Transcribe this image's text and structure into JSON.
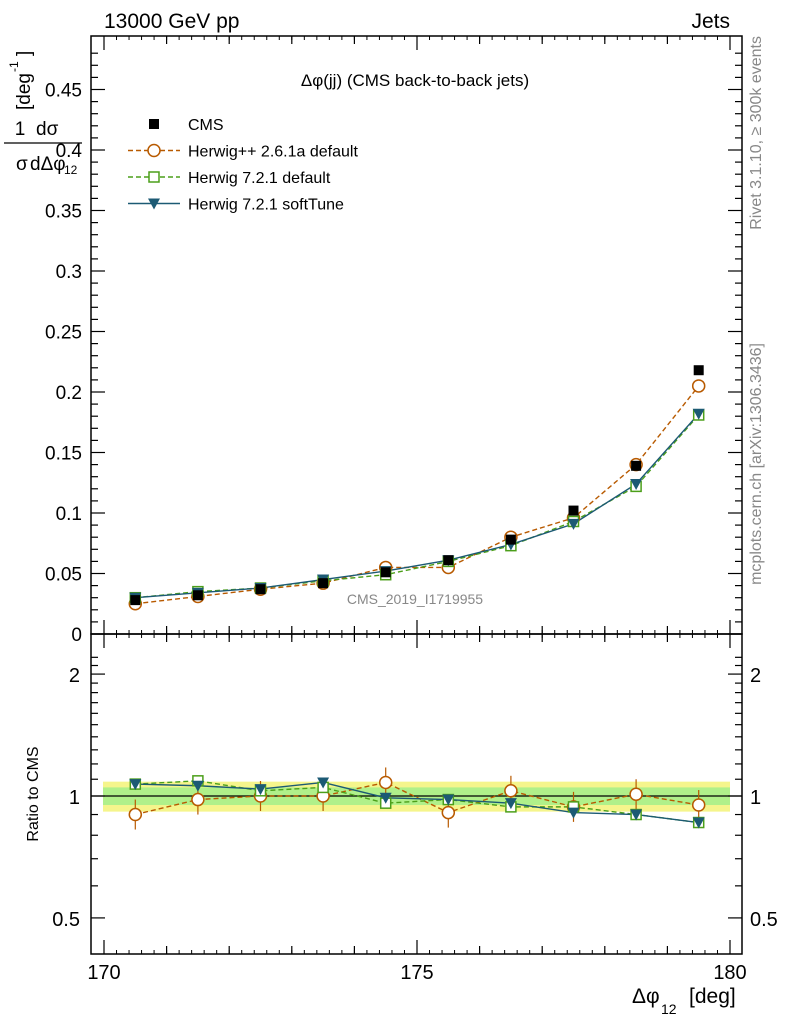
{
  "header": {
    "left": "13000 GeV pp",
    "right": "Jets"
  },
  "side_text": {
    "top": "Rivet 3.1.10, ≥ 300k events",
    "bottom": "mcplots.cern.ch [arXiv:1306.3436]"
  },
  "chart_data": {
    "type": "scatter",
    "title": "Δφ(jj) (CMS back-to-back jets)",
    "watermark": "CMS_2019_I1719955",
    "xlabel": "Δφ₁₂ [deg]",
    "ylabel_top": "1/σ dσ/dΔφ₁₂ [deg⁻¹]",
    "ylabel_bottom": "Ratio to CMS",
    "xlim": [
      170,
      180
    ],
    "ylim_top": [
      0,
      0.5
    ],
    "ylim_bottom": [
      0.4,
      2.3
    ],
    "y_scale_bottom": "log",
    "x_ticks": [
      "170",
      "175",
      "180"
    ],
    "y_ticks_top": [
      "0",
      "0.05",
      "0.1",
      "0.15",
      "0.2",
      "0.25",
      "0.3",
      "0.35",
      "0.4",
      "0.45"
    ],
    "y_ticks_bottom": [
      "0.5",
      "1",
      "2"
    ],
    "x": [
      170.5,
      171.5,
      172.5,
      173.5,
      174.5,
      175.5,
      176.5,
      177.5,
      178.5,
      179.5
    ],
    "legend_position": "top-left",
    "series": [
      {
        "name": "CMS",
        "color": "#000000",
        "marker": "square-filled",
        "values": [
          0.028,
          0.032,
          0.037,
          0.042,
          0.051,
          0.061,
          0.078,
          0.102,
          0.139,
          0.218
        ]
      },
      {
        "name": "Herwig++ 2.6.1a default",
        "color": "#b85a00",
        "marker": "circle-open",
        "line": "dashed",
        "values": [
          0.025,
          0.031,
          0.037,
          0.042,
          0.055,
          0.055,
          0.08,
          0.096,
          0.14,
          0.205
        ],
        "ratio": [
          0.9,
          0.98,
          1.0,
          1.0,
          1.08,
          0.91,
          1.03,
          0.94,
          1.01,
          0.95
        ]
      },
      {
        "name": "Herwig 7.2.1 default",
        "color": "#4c9f1a",
        "marker": "square-open",
        "line": "dashed",
        "values": [
          0.03,
          0.035,
          0.038,
          0.044,
          0.049,
          0.06,
          0.073,
          0.093,
          0.122,
          0.181
        ],
        "ratio": [
          1.07,
          1.09,
          1.03,
          1.05,
          0.96,
          0.98,
          0.94,
          0.94,
          0.9,
          0.86
        ]
      },
      {
        "name": "Herwig 7.2.1 softTune",
        "color": "#1c5a74",
        "marker": "triangle-down-filled",
        "line": "solid",
        "values": [
          0.03,
          0.034,
          0.038,
          0.045,
          0.052,
          0.061,
          0.074,
          0.091,
          0.124,
          0.182
        ],
        "ratio": [
          1.07,
          1.06,
          1.04,
          1.08,
          0.99,
          0.98,
          0.96,
          0.91,
          0.9,
          0.86
        ]
      }
    ]
  }
}
